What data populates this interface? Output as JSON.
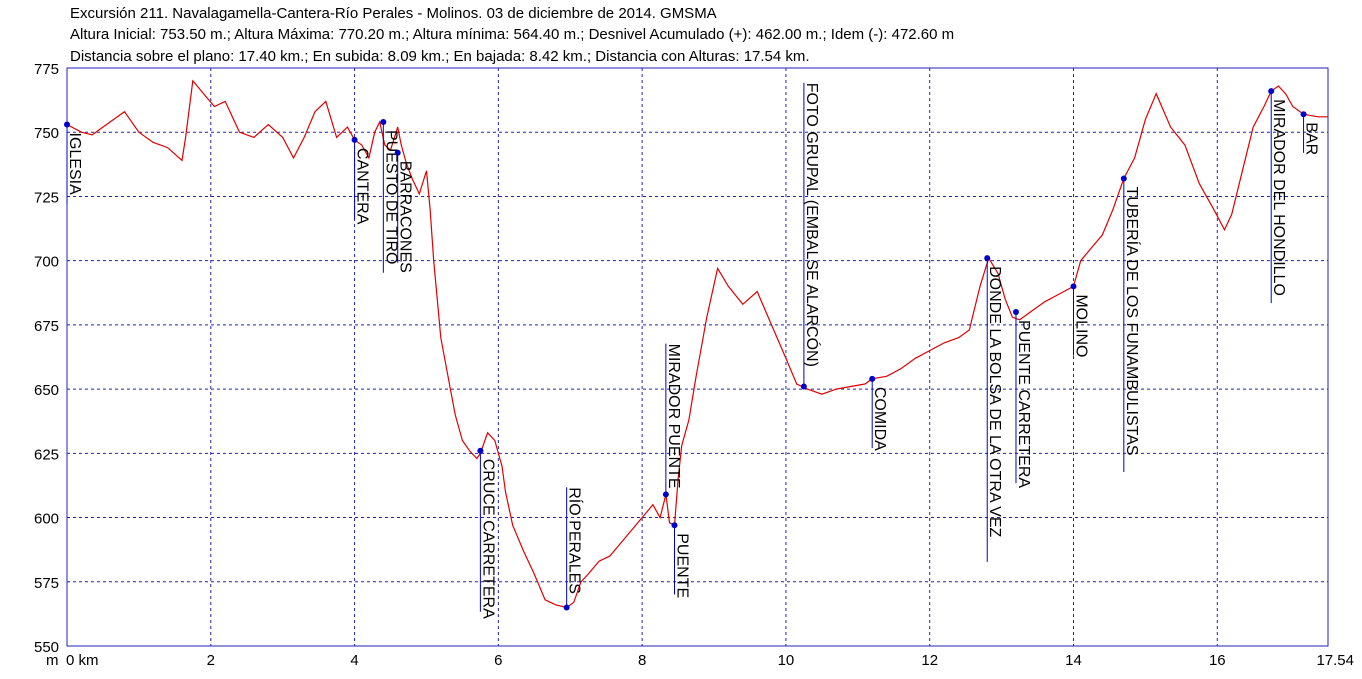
{
  "header": {
    "line1": "Excursión 211. Navalagamella-Cantera-Río Perales - Molinos. 03 de diciembre de 2014. GMSMA",
    "line2": "Altura Inicial: 753.50 m.; Altura Máxima: 770.20 m.; Altura mínima: 564.40 m.; Desnivel Acumulado (+): 462.00 m.; Idem (-): 472.60 m",
    "line3": "Distancia sobre el plano: 17.40 km.; En subida: 8.09 km.; En bajada: 8.42 km.; Distancia con Alturas: 17.54 km."
  },
  "colors": {
    "line": "#e00000",
    "marker": "#0000cc",
    "grid": "#2222bb",
    "axis": "#000000"
  },
  "chart_data": {
    "type": "line",
    "title": "Excursión 211. Navalagamella-Cantera-Río Perales - Molinos. 03 de diciembre de 2014. GMSMA",
    "xlabel": "km",
    "ylabel": "m",
    "xlim": [
      0,
      17.54
    ],
    "ylim": [
      550,
      775
    ],
    "x_ticks": [
      0,
      2,
      4,
      6,
      8,
      10,
      12,
      14,
      16,
      17.54
    ],
    "x_tick_labels": [
      "0 km",
      "2",
      "4",
      "6",
      "8",
      "10",
      "12",
      "14",
      "16",
      "17.54"
    ],
    "y_ticks": [
      775,
      750,
      725,
      700,
      675,
      650,
      625,
      600,
      575,
      550
    ],
    "y_tick_labels": [
      "775",
      "750",
      "725",
      "700",
      "675",
      "650",
      "625",
      "600",
      "575",
      "550"
    ],
    "y_unit_label": "m",
    "grid": true,
    "series": [
      {
        "x": [
          0,
          0.2,
          0.35,
          0.5,
          0.65,
          0.8,
          1.0,
          1.2,
          1.4,
          1.6,
          1.65,
          1.75,
          1.9,
          2.05,
          2.2,
          2.4,
          2.6,
          2.8,
          3.0,
          3.15,
          3.3,
          3.45,
          3.6,
          3.75,
          3.9,
          4.0,
          4.1,
          4.2,
          4.28,
          4.35,
          4.42,
          4.5,
          4.6,
          4.65,
          4.72,
          4.8,
          4.9,
          5.0,
          5.05,
          5.1,
          5.2,
          5.3,
          5.4,
          5.5,
          5.6,
          5.7,
          5.75,
          5.85,
          5.95,
          6.05,
          6.1,
          6.2,
          6.35,
          6.5,
          6.65,
          6.8,
          6.95,
          7.05,
          7.15,
          7.25,
          7.4,
          7.55,
          7.7,
          7.85,
          8.0,
          8.15,
          8.25,
          8.33,
          8.38,
          8.45,
          8.5,
          8.55,
          8.65,
          8.75,
          8.9,
          9.05,
          9.2,
          9.4,
          9.6,
          9.8,
          10.0,
          10.15,
          10.3,
          10.5,
          10.7,
          10.9,
          11.1,
          11.2,
          11.4,
          11.6,
          11.8,
          12.0,
          12.2,
          12.4,
          12.55,
          12.7,
          12.82,
          12.95,
          13.05,
          13.15,
          13.25,
          13.4,
          13.6,
          13.8,
          14.0,
          14.1,
          14.25,
          14.4,
          14.55,
          14.7,
          14.85,
          15.0,
          15.15,
          15.35,
          15.55,
          15.75,
          15.95,
          16.1,
          16.2,
          16.35,
          16.5,
          16.65,
          16.75,
          16.85,
          16.95,
          17.05,
          17.2,
          17.4,
          17.54
        ],
        "values": [
          753,
          750,
          749,
          752,
          755,
          758,
          750,
          746,
          744,
          739,
          748,
          770,
          765,
          760,
          762,
          750,
          748,
          753,
          748,
          740,
          748,
          758,
          762,
          748,
          752,
          747,
          745,
          740,
          750,
          754,
          745,
          743,
          752,
          745,
          738,
          732,
          726,
          735,
          720,
          700,
          670,
          655,
          640,
          630,
          626,
          623,
          625,
          633,
          630,
          620,
          610,
          597,
          587,
          578,
          568,
          566,
          565,
          567,
          575,
          578,
          583,
          585,
          590,
          595,
          600,
          605,
          600,
          609,
          598,
          597,
          615,
          628,
          638,
          655,
          678,
          697,
          690,
          683,
          688,
          675,
          662,
          652,
          650,
          648,
          650,
          651,
          652,
          654,
          655,
          658,
          662,
          665,
          668,
          670,
          673,
          690,
          701,
          695,
          685,
          678,
          677,
          680,
          684,
          687,
          690,
          700,
          705,
          710,
          720,
          732,
          740,
          755,
          765,
          752,
          745,
          730,
          720,
          712,
          718,
          735,
          752,
          760,
          766,
          768,
          765,
          760,
          757,
          756,
          756
        ]
      }
    ],
    "annotations": [
      {
        "label": "IGLESIA",
        "x": 0,
        "y": 753
      },
      {
        "label": "CANTERA",
        "x": 4.0,
        "y": 747
      },
      {
        "label": "PUESTO DE TIRO",
        "x": 4.4,
        "y": 754
      },
      {
        "label": "BARRACONES",
        "x": 4.6,
        "y": 742
      },
      {
        "label": "CRUCE CARRETERA",
        "x": 5.75,
        "y": 626
      },
      {
        "label": "RÍO PERALES",
        "x": 6.95,
        "y": 565
      },
      {
        "label": "MIRADOR PUENTE",
        "x": 8.33,
        "y": 609
      },
      {
        "label": "PUENTE",
        "x": 8.45,
        "y": 597
      },
      {
        "label": "FOTO GRUPAL (EMBALSE ALARCÓN)",
        "x": 10.25,
        "y": 651
      },
      {
        "label": "COMIDA",
        "x": 11.2,
        "y": 654
      },
      {
        "label": "DONDE LA BOLSA DE LA OTRA VEZ",
        "x": 12.8,
        "y": 701
      },
      {
        "label": "PUENTE CARRETERA",
        "x": 13.2,
        "y": 680
      },
      {
        "label": "MOLINO",
        "x": 14.0,
        "y": 690
      },
      {
        "label": "TUBERÍA DE LOS FUNAMBULISTAS",
        "x": 14.7,
        "y": 732
      },
      {
        "label": "MIRADOR DEL HONDILLO",
        "x": 16.75,
        "y": 766
      },
      {
        "label": "BAR",
        "x": 17.2,
        "y": 757
      }
    ]
  }
}
